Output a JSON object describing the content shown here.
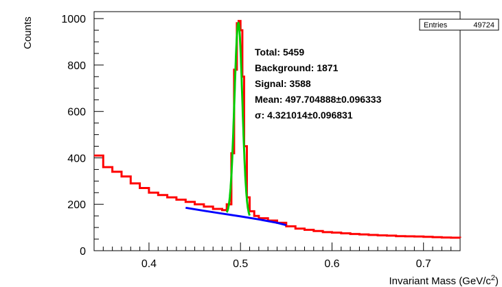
{
  "chart_data": {
    "type": "line",
    "xlabel": "Invariant Mass (GeV/c",
    "xlabel_sup": "2",
    "xlabel_end": ")",
    "ylabel": "Counts",
    "xlim": [
      0.34,
      0.74
    ],
    "ylim": [
      0,
      1030
    ],
    "x_ticks": [
      0.4,
      0.5,
      0.6,
      0.7
    ],
    "x_tick_labels": [
      "0.4",
      "0.5",
      "0.6",
      "0.7"
    ],
    "y_ticks": [
      0,
      200,
      400,
      600,
      800,
      1000
    ],
    "y_tick_labels": [
      "0",
      "200",
      "400",
      "600",
      "800",
      "1000"
    ],
    "grid": false,
    "stats_box": {
      "label": "Entries",
      "value": "49724"
    },
    "annotations": [
      "Total: 5459",
      "Background: 1871",
      "Signal: 3588",
      "Mean: 497.704888±0.096333",
      "σ: 4.321014±0.096831"
    ],
    "series": [
      {
        "kind": "histogram",
        "color": "#ff0000",
        "x": [
          0.34,
          0.35,
          0.36,
          0.37,
          0.38,
          0.39,
          0.4,
          0.41,
          0.42,
          0.43,
          0.44,
          0.45,
          0.46,
          0.47,
          0.48,
          0.485,
          0.49,
          0.493,
          0.496,
          0.498,
          0.5,
          0.502,
          0.504,
          0.507,
          0.51,
          0.515,
          0.52,
          0.53,
          0.54,
          0.55,
          0.56,
          0.57,
          0.58,
          0.59,
          0.6,
          0.61,
          0.62,
          0.63,
          0.64,
          0.65,
          0.66,
          0.67,
          0.68,
          0.69,
          0.7,
          0.71,
          0.72,
          0.73,
          0.74
        ],
        "values": [
          410,
          360,
          340,
          320,
          290,
          270,
          250,
          240,
          230,
          220,
          210,
          200,
          190,
          180,
          175,
          200,
          420,
          780,
          980,
          990,
          950,
          750,
          450,
          230,
          170,
          150,
          140,
          130,
          120,
          105,
          95,
          90,
          85,
          80,
          78,
          75,
          72,
          70,
          68,
          66,
          65,
          63,
          62,
          61,
          60,
          58,
          57,
          56,
          55
        ]
      },
      {
        "kind": "fit",
        "name": "background fit",
        "color": "#0000ff",
        "x": [
          0.44,
          0.46,
          0.48,
          0.5,
          0.52,
          0.54,
          0.55
        ],
        "values": [
          185,
          172,
          160,
          148,
          135,
          120,
          110
        ]
      },
      {
        "kind": "fit",
        "name": "signal fit",
        "color": "#00cc00",
        "mean": 0.4977,
        "sigma": 0.00432,
        "amplitude": 835,
        "x_range": [
          0.485,
          0.51
        ]
      }
    ]
  }
}
